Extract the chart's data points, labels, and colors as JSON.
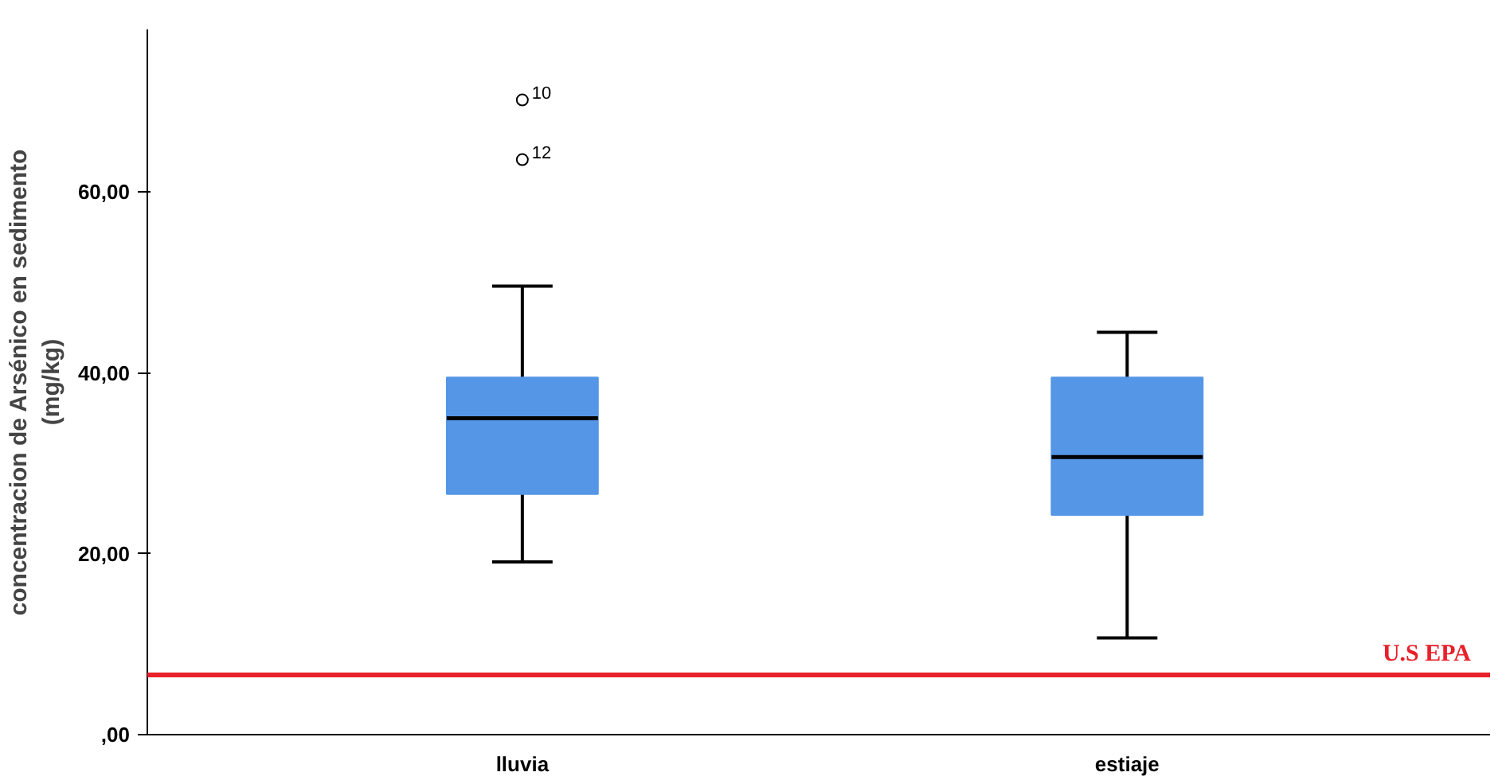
{
  "chart_data": {
    "type": "box",
    "ylabel": "concentracion de Arsénico en sedimento\n(mg/kg)",
    "categories": [
      "lluvia",
      "estiaje"
    ],
    "color": "#5596e6",
    "boxes": [
      {
        "low": 19.1,
        "q1": 26.6,
        "median": 35.0,
        "q3": 39.5,
        "high": 49.6,
        "outliers": [
          70.2,
          63.6
        ]
      },
      {
        "low": 10.7,
        "q1": 24.3,
        "median": 30.7,
        "q3": 39.5,
        "high": 44.5
      }
    ],
    "ylim": [
      0,
      78
    ],
    "yticks": [
      {
        "value": 0,
        "label": ",00"
      },
      {
        "value": 20,
        "label": "20,00"
      },
      {
        "value": 40,
        "label": "40,00"
      },
      {
        "value": 60,
        "label": "60,00"
      }
    ],
    "ref_lines": [
      {
        "axis": "y",
        "value": 6.6,
        "label": "U.S EPA",
        "color": "#e8202a"
      }
    ],
    "annotations": [
      "10",
      "12"
    ],
    "grid": false
  }
}
